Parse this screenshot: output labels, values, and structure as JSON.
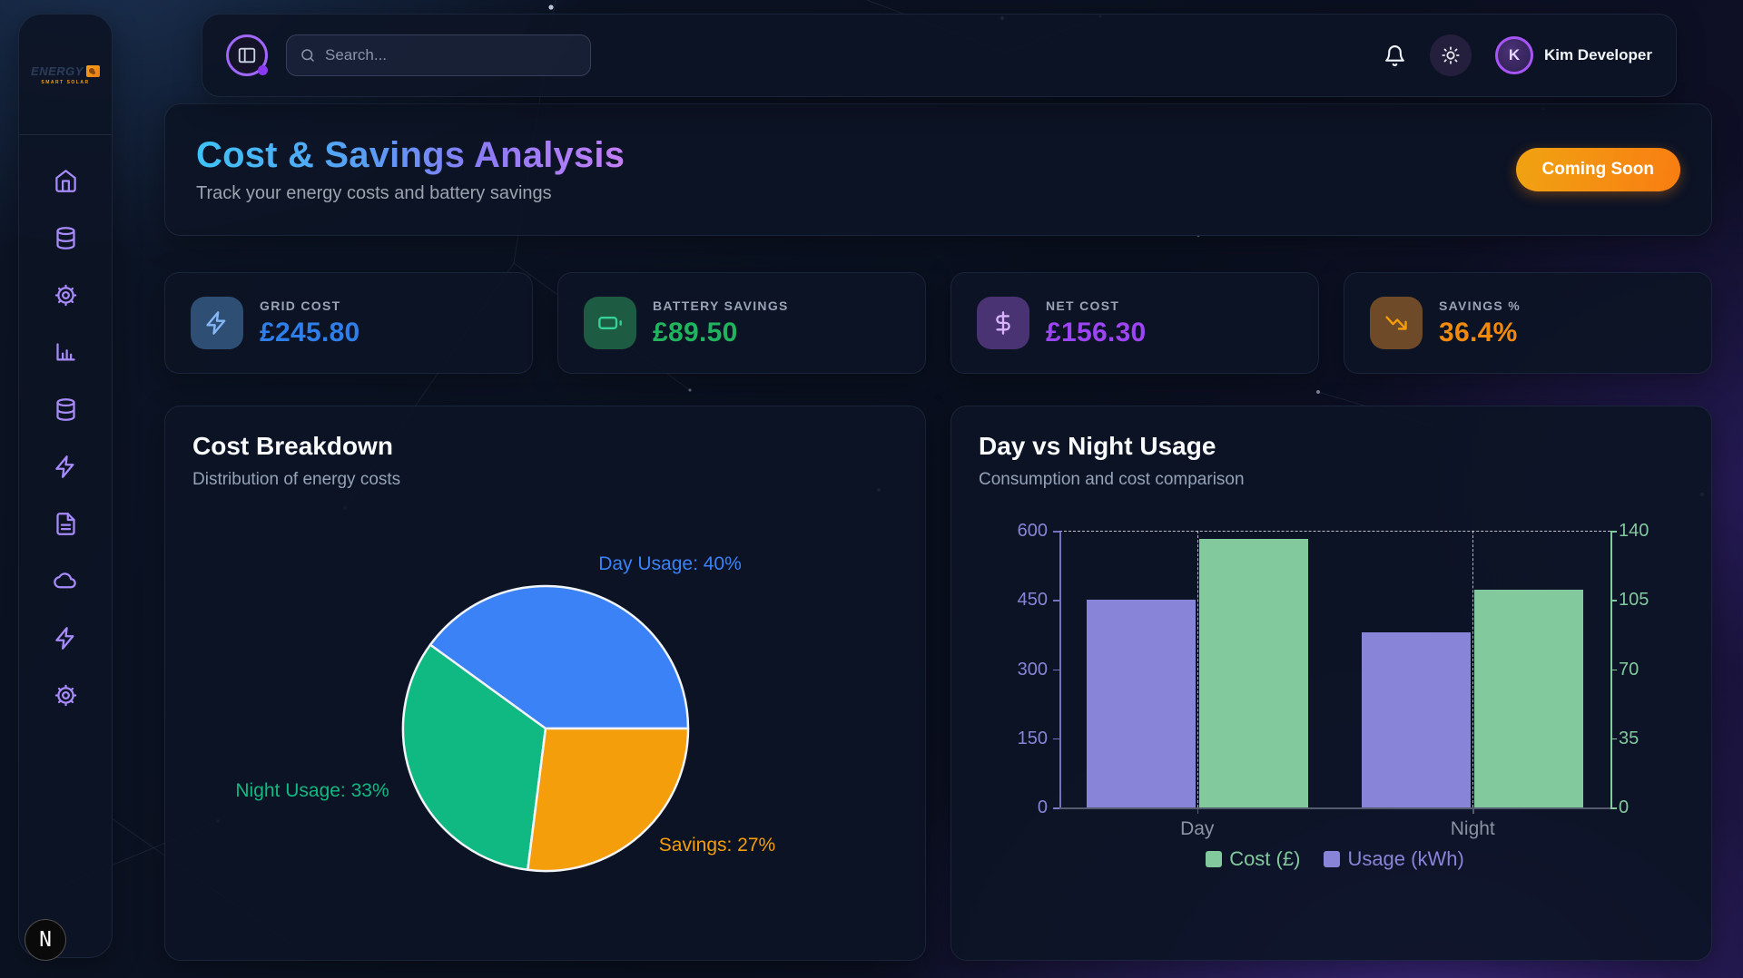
{
  "topbar": {
    "search_placeholder": "Search...",
    "user_name": "Kim Developer",
    "user_initial": "K",
    "accent_ring": "#a855f7"
  },
  "sidebar": {
    "brand": "ENERGY",
    "brand_tagline": "SMART SOLAR",
    "bolt": "⚡",
    "icons": [
      "home-icon",
      "database-icon",
      "gear-icon",
      "chart-column-icon",
      "database-icon",
      "zap-icon",
      "file-text-icon",
      "cloud-icon",
      "zap-icon",
      "gear-icon"
    ],
    "icon_color": "#a78bfa",
    "nextjs_badge": "N"
  },
  "header": {
    "title": "Cost & Savings Analysis",
    "subtitle": "Track your energy costs and battery savings",
    "badge": "Coming Soon",
    "badge_gradient": [
      "#f0a312",
      "#f97d12"
    ],
    "title_gradient": [
      "#3ec3f7",
      "#c47ef8"
    ]
  },
  "stats": [
    {
      "label": "GRID COST",
      "value": "£245.80",
      "icon": "zap-icon",
      "accent": "#2e7fe9",
      "tile_bg": "#2e4e74",
      "icon_color": "#85b8f8"
    },
    {
      "label": "BATTERY SAVINGS",
      "value": "£89.50",
      "icon": "battery-icon",
      "accent": "#21b45e",
      "tile_bg": "#1d5c42",
      "icon_color": "#34d399"
    },
    {
      "label": "NET COST",
      "value": "£156.30",
      "icon": "dollar-sign-icon",
      "accent": "#9d45f5",
      "tile_bg": "#4a3372",
      "icon_color": "#d8b4fe"
    },
    {
      "label": "SAVINGS %",
      "value": "36.4%",
      "icon": "trending-down-icon",
      "accent": "#ef8a0e",
      "tile_bg": "#6e4a28",
      "icon_color": "#f59e0b"
    }
  ],
  "cards": {
    "pie": {
      "title": "Cost Breakdown",
      "subtitle": "Distribution of energy costs"
    },
    "bar": {
      "title": "Day vs Night Usage",
      "subtitle": "Consumption and cost comparison"
    }
  },
  "chart_data": [
    {
      "type": "pie",
      "title": "Cost Breakdown",
      "labels": [
        "Day Usage",
        "Night Usage",
        "Savings"
      ],
      "values": [
        40,
        33,
        27
      ],
      "unit": "%",
      "colors": [
        "#3b82f6",
        "#10b981",
        "#f59e0b"
      ],
      "slice_border_color": "#f1f5f9",
      "orientation": "counterclockwise-from-east",
      "legend_position": "labels-around-pie"
    },
    {
      "type": "bar",
      "title": "Day vs Night Usage",
      "categories": [
        "Day",
        "Night"
      ],
      "series": [
        {
          "name": "Usage (kWh)",
          "axis": "left",
          "color": "#8884d8",
          "values": [
            450,
            380
          ]
        },
        {
          "name": "Cost (£)",
          "axis": "right",
          "color": "#82ca9d",
          "values": [
            136,
            110
          ]
        }
      ],
      "left_axis": {
        "ticks": [
          0,
          150,
          300,
          450,
          600
        ],
        "max": 600,
        "color": "#8884d8"
      },
      "right_axis": {
        "ticks": [
          0,
          35,
          70,
          105,
          140
        ],
        "max": 140,
        "color": "#82ca9d"
      },
      "x_label_color": "#8b93a3",
      "grid": "dashed-top-and-category-guides",
      "legend": [
        {
          "label": "Cost (£)",
          "color": "#82ca9d"
        },
        {
          "label": "Usage (kWh)",
          "color": "#8884d8"
        }
      ],
      "legend_position": "bottom-center"
    }
  ]
}
